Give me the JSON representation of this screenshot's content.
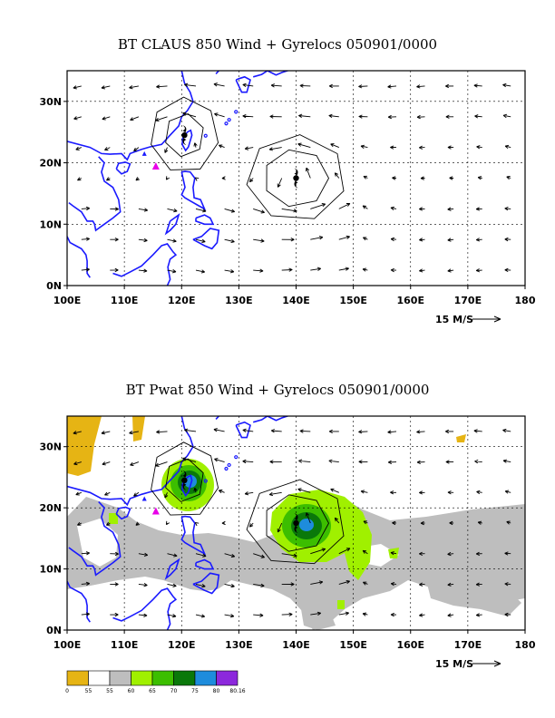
{
  "panels": [
    {
      "title": "BT CLAUS 850 Wind + Gyrelocs 050901/0000",
      "x_tick_labels": [
        "100E",
        "110E",
        "120E",
        "130E",
        "140E",
        "150E",
        "160E",
        "170E",
        "180"
      ],
      "y_tick_labels": [
        "0N",
        "10N",
        "20N",
        "30N"
      ],
      "vector_scale_label": "15 M/S",
      "shading": "none",
      "storm_symbols": [
        {
          "lon": 120.5,
          "lat": 24.5
        },
        {
          "lon": 140.0,
          "lat": 17.5
        }
      ],
      "triangle_markers": [
        {
          "lon": 115.5,
          "lat": 19.5,
          "color": "#e800e8"
        },
        {
          "lon": 113.5,
          "lat": 21.5,
          "color": "#1a1aff"
        }
      ]
    },
    {
      "title": "BT Pwat 850 Wind + Gyrelocs 050901/0000",
      "x_tick_labels": [
        "100E",
        "110E",
        "120E",
        "130E",
        "140E",
        "150E",
        "160E",
        "170E",
        "180"
      ],
      "y_tick_labels": [
        "0N",
        "10N",
        "20N",
        "30N"
      ],
      "vector_scale_label": "15 M/S",
      "shading": "precipitable water",
      "storm_symbols": [
        {
          "lon": 120.5,
          "lat": 24.5
        },
        {
          "lon": 140.0,
          "lat": 17.5
        }
      ],
      "triangle_markers": [
        {
          "lon": 115.5,
          "lat": 19.5,
          "color": "#e800e8"
        },
        {
          "lon": 113.5,
          "lat": 21.5,
          "color": "#1a1aff"
        }
      ]
    }
  ],
  "colorbar": {
    "labels": [
      "0",
      "55",
      "55",
      "60",
      "65",
      "70",
      "75",
      "80",
      "80.16"
    ],
    "colors": [
      "#e6b414",
      "#ffffff",
      "#bebebe",
      "#a0f000",
      "#3cbe00",
      "#0a780a",
      "#1e8cdc",
      "#8c28dc"
    ]
  },
  "map": {
    "lon_range": [
      100,
      180
    ],
    "lat_range": [
      0,
      35
    ],
    "grid_lons": [
      110,
      120,
      130,
      140,
      150,
      160,
      170
    ],
    "grid_lats": [
      10,
      20,
      30
    ],
    "coast_color": "#1a1aff"
  }
}
